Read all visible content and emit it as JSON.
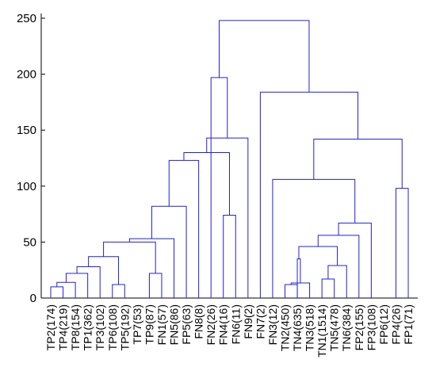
{
  "chart_data": {
    "type": "dendrogram",
    "ylim": [
      0,
      250
    ],
    "yticks": [
      0,
      50,
      100,
      150,
      200,
      250
    ],
    "leaves": [
      "TP2(174)",
      "TP4(219)",
      "TP8(154)",
      "TP1(362)",
      "TP3(102)",
      "TP6(108)",
      "TP5(192)",
      "TP7(53)",
      "TP9(87)",
      "FN1(57)",
      "FN5(86)",
      "FP5(63)",
      "FN8(8)",
      "FN2(26)",
      "FN4(16)",
      "FN6(11)",
      "FN9(2)",
      "FN7(2)",
      "FN3(12)",
      "TN2(450)",
      "TN4(635)",
      "TN3(518)",
      "TN1(1514)",
      "TN5(478)",
      "TN6(384)",
      "FP2(155)",
      "FP3(108)",
      "FP6(12)",
      "FP4(26)",
      "FP1(71)"
    ],
    "merges": [
      [
        "TP2(174)",
        "TP4(219)",
        10
      ],
      [
        "TN2(450)",
        "TN4(635)",
        12
      ],
      [
        "TP6(108)",
        "TP5(192)",
        12
      ],
      [
        "C1",
        "TP8(154)",
        14
      ],
      [
        "C2",
        "TN3(518)",
        13.5
      ],
      [
        "TN1(1514)",
        "TN5(478)",
        17
      ],
      [
        "TP9(87)",
        "FN1(57)",
        22
      ],
      [
        "C4",
        "TP1(362)",
        22
      ],
      [
        "C6",
        "TN6(384)",
        29
      ],
      [
        "C8",
        "TP3(102)",
        28
      ],
      [
        "TN4(635)",
        "C5",
        35
      ],
      [
        "C10",
        "C3",
        37
      ],
      [
        "C11",
        "C9",
        46
      ],
      [
        "C12",
        "C7",
        50
      ],
      [
        "C13",
        "FP2(155)",
        56
      ],
      [
        "C15",
        "FP3(108)",
        67
      ],
      [
        "C14",
        "FN5(86)",
        53
      ],
      [
        "FN4(16)",
        "FN6(11)",
        74
      ],
      [
        "C17",
        "FP5(63)",
        82
      ],
      [
        "FP4(26)",
        "FP1(71)",
        98
      ],
      [
        "C16",
        "FN3(12)",
        106
      ],
      [
        "C19",
        "FN8(8)",
        123
      ],
      [
        "C22",
        "C18",
        130
      ],
      [
        "C23",
        "FN9(2)",
        143
      ],
      [
        "C21",
        "C20",
        142
      ],
      [
        "C25",
        "FN7(2)",
        184
      ],
      [
        "C24",
        "FN2(26)",
        197
      ],
      [
        "C27",
        "C26",
        248
      ]
    ],
    "line_color": "#2020dd",
    "grid": false
  }
}
